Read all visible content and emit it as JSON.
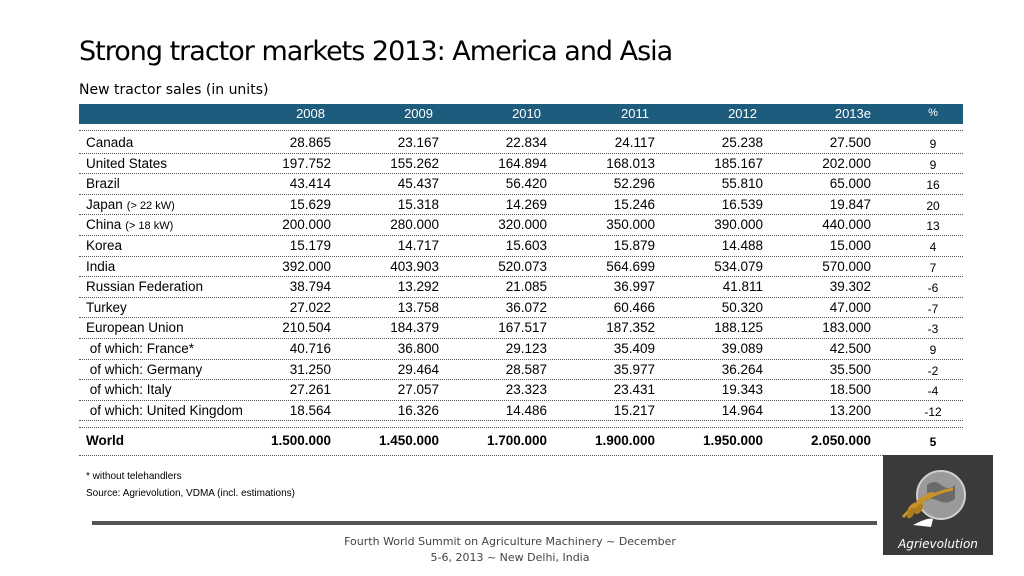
{
  "title": "Strong tractor markets 2013: America and Asia",
  "subtitle": "New tractor sales (in units)",
  "columns": [
    "2008",
    "2009",
    "2010",
    "2011",
    "2012",
    "2013e",
    "%"
  ],
  "rows": [
    {
      "name": "Canada",
      "note": "",
      "values": [
        "28.865",
        "23.167",
        "22.834",
        "24.117",
        "25.238",
        "27.500"
      ],
      "pct": "9"
    },
    {
      "name": "United States",
      "note": "",
      "values": [
        "197.752",
        "155.262",
        "164.894",
        "168.013",
        "185.167",
        "202.000"
      ],
      "pct": "9"
    },
    {
      "name": "Brazil",
      "note": "",
      "values": [
        "43.414",
        "45.437",
        "56.420",
        "52.296",
        "55.810",
        "65.000"
      ],
      "pct": "16"
    },
    {
      "name": "Japan",
      "note": "(> 22 kW)",
      "values": [
        "15.629",
        "15.318",
        "14.269",
        "15.246",
        "16.539",
        "19.847"
      ],
      "pct": "20"
    },
    {
      "name": "China",
      "note": "(> 18 kW)",
      "values": [
        "200.000",
        "280.000",
        "320.000",
        "350.000",
        "390.000",
        "440.000"
      ],
      "pct": "13"
    },
    {
      "name": "Korea",
      "note": "",
      "values": [
        "15.179",
        "14.717",
        "15.603",
        "15.879",
        "14.488",
        "15.000"
      ],
      "pct": "4"
    },
    {
      "name": "India",
      "note": "",
      "values": [
        "392.000",
        "403.903",
        "520.073",
        "564.699",
        "534.079",
        "570.000"
      ],
      "pct": "7"
    },
    {
      "name": "Russian Federation",
      "note": "",
      "values": [
        "38.794",
        "13.292",
        "21.085",
        "36.997",
        "41.811",
        "39.302"
      ],
      "pct": "-6"
    },
    {
      "name": "Turkey",
      "note": "",
      "values": [
        "27.022",
        "13.758",
        "36.072",
        "60.466",
        "50.320",
        "47.000"
      ],
      "pct": "-7"
    },
    {
      "name": "European Union",
      "note": "",
      "values": [
        "210.504",
        "184.379",
        "167.517",
        "187.352",
        "188.125",
        "183.000"
      ],
      "pct": "-3"
    },
    {
      "name": " of which: France*",
      "note": "",
      "values": [
        "40.716",
        "36.800",
        "29.123",
        "35.409",
        "39.089",
        "42.500"
      ],
      "pct": "9"
    },
    {
      "name": " of which: Germany",
      "note": "",
      "values": [
        "31.250",
        "29.464",
        "28.587",
        "35.977",
        "36.264",
        "35.500"
      ],
      "pct": "-2"
    },
    {
      "name": " of which: Italy",
      "note": "",
      "values": [
        "27.261",
        "27.057",
        "23.323",
        "23.431",
        "19.343",
        "18.500"
      ],
      "pct": "-4"
    },
    {
      "name": " of which: United Kingdom",
      "note": "",
      "values": [
        "18.564",
        "16.326",
        "14.486",
        "15.217",
        "14.964",
        "13.200"
      ],
      "pct": "-12"
    }
  ],
  "world": {
    "name": "World",
    "values": [
      "1.500.000",
      "1.450.000",
      "1.700.000",
      "1.900.000",
      "1.950.000",
      "2.050.000"
    ],
    "pct": "5"
  },
  "footnote": "* without telehandlers",
  "source": "Source: Agrievolution, VDMA (incl. estimations)",
  "footer": "Fourth World Summit on Agriculture Machinery ~ December 5-6, 2013 ~ New Delhi, India",
  "logo_text": "Agrievolution",
  "colors": {
    "header_bg": "#1d5c7c",
    "logo_bg": "#3a3a3a",
    "wheat": "#c8922a"
  }
}
